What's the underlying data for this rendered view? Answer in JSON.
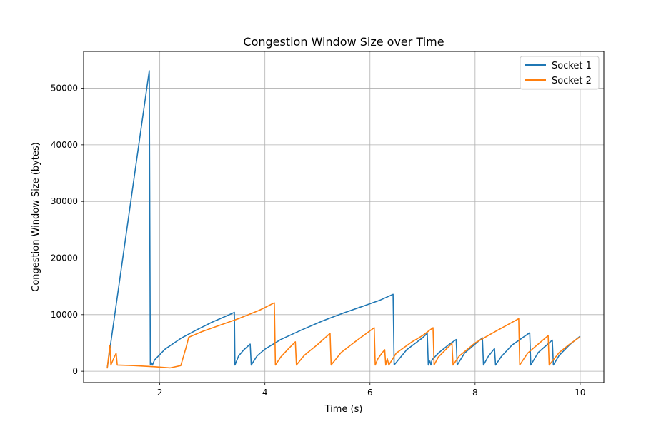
{
  "chart_data": {
    "type": "line",
    "title": "Congestion Window Size over Time",
    "xlabel": "Time (s)",
    "ylabel": "Congestion Window Size (bytes)",
    "xlim": [
      0.55,
      10.45
    ],
    "ylim": [
      -2000,
      56500
    ],
    "xticks": [
      2,
      4,
      6,
      8,
      10
    ],
    "yticks": [
      0,
      10000,
      20000,
      30000,
      40000,
      50000
    ],
    "grid": true,
    "legend_position": "top-right",
    "series": [
      {
        "name": "Socket 1",
        "color": "#1f77b4",
        "points": [
          [
            1.0,
            600
          ],
          [
            1.8,
            53100
          ],
          [
            1.82,
            1200
          ],
          [
            1.84,
            1500
          ],
          [
            1.86,
            1100
          ],
          [
            1.9,
            2000
          ],
          [
            2.1,
            3900
          ],
          [
            2.4,
            5800
          ],
          [
            2.7,
            7300
          ],
          [
            3.0,
            8700
          ],
          [
            3.3,
            9900
          ],
          [
            3.42,
            10400
          ],
          [
            3.43,
            1100
          ],
          [
            3.5,
            2700
          ],
          [
            3.6,
            3800
          ],
          [
            3.72,
            4800
          ],
          [
            3.74,
            1100
          ],
          [
            3.85,
            2700
          ],
          [
            4.0,
            3900
          ],
          [
            4.3,
            5600
          ],
          [
            4.7,
            7300
          ],
          [
            5.1,
            8900
          ],
          [
            5.5,
            10300
          ],
          [
            5.9,
            11600
          ],
          [
            6.2,
            12600
          ],
          [
            6.44,
            13600
          ],
          [
            6.46,
            1100
          ],
          [
            6.7,
            3800
          ],
          [
            7.0,
            5900
          ],
          [
            7.09,
            6700
          ],
          [
            7.11,
            1100
          ],
          [
            7.14,
            1800
          ],
          [
            7.16,
            1100
          ],
          [
            7.18,
            2000
          ],
          [
            7.3,
            3200
          ],
          [
            7.5,
            4700
          ],
          [
            7.64,
            5600
          ],
          [
            7.66,
            1100
          ],
          [
            7.8,
            3200
          ],
          [
            8.0,
            4800
          ],
          [
            8.14,
            5900
          ],
          [
            8.16,
            1100
          ],
          [
            8.25,
            2600
          ],
          [
            8.37,
            4000
          ],
          [
            8.39,
            1100
          ],
          [
            8.5,
            2600
          ],
          [
            8.7,
            4600
          ],
          [
            8.9,
            5900
          ],
          [
            9.04,
            6800
          ],
          [
            9.06,
            1100
          ],
          [
            9.2,
            3300
          ],
          [
            9.47,
            5500
          ],
          [
            9.49,
            1100
          ],
          [
            9.6,
            2800
          ],
          [
            9.8,
            4700
          ],
          [
            10.0,
            6200
          ]
        ]
      },
      {
        "name": "Socket 2",
        "color": "#ff7f0e",
        "points": [
          [
            1.0,
            500
          ],
          [
            1.05,
            4600
          ],
          [
            1.07,
            1100
          ],
          [
            1.12,
            2200
          ],
          [
            1.17,
            3200
          ],
          [
            1.19,
            1100
          ],
          [
            1.5,
            1000
          ],
          [
            1.9,
            800
          ],
          [
            2.2,
            600
          ],
          [
            2.4,
            1000
          ],
          [
            2.5,
            4200
          ],
          [
            2.55,
            6000
          ],
          [
            2.8,
            7000
          ],
          [
            3.1,
            8000
          ],
          [
            3.5,
            9300
          ],
          [
            3.9,
            10800
          ],
          [
            4.18,
            12100
          ],
          [
            4.2,
            1100
          ],
          [
            4.3,
            2500
          ],
          [
            4.45,
            4000
          ],
          [
            4.58,
            5200
          ],
          [
            4.6,
            1100
          ],
          [
            4.75,
            2800
          ],
          [
            5.0,
            4700
          ],
          [
            5.24,
            6700
          ],
          [
            5.26,
            1100
          ],
          [
            5.45,
            3300
          ],
          [
            5.7,
            5100
          ],
          [
            6.08,
            7700
          ],
          [
            6.1,
            1100
          ],
          [
            6.15,
            2200
          ],
          [
            6.22,
            3100
          ],
          [
            6.28,
            3800
          ],
          [
            6.3,
            1100
          ],
          [
            6.33,
            2200
          ],
          [
            6.36,
            1100
          ],
          [
            6.5,
            3200
          ],
          [
            6.8,
            5200
          ],
          [
            7.0,
            6300
          ],
          [
            7.2,
            7700
          ],
          [
            7.22,
            1100
          ],
          [
            7.3,
            2500
          ],
          [
            7.45,
            3900
          ],
          [
            7.56,
            4900
          ],
          [
            7.58,
            1100
          ],
          [
            7.7,
            2700
          ],
          [
            8.0,
            5000
          ],
          [
            8.4,
            7100
          ],
          [
            8.83,
            9300
          ],
          [
            8.85,
            1100
          ],
          [
            9.0,
            3200
          ],
          [
            9.2,
            4800
          ],
          [
            9.39,
            6300
          ],
          [
            9.41,
            1100
          ],
          [
            9.6,
            3300
          ],
          [
            9.8,
            4800
          ],
          [
            10.0,
            6100
          ]
        ]
      }
    ]
  }
}
